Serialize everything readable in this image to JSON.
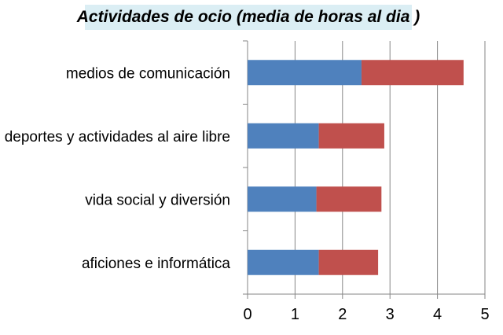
{
  "chart_data": {
    "type": "bar",
    "orientation": "horizontal",
    "stacked": true,
    "title": "Actividades de ocio (media de horas al dia )",
    "categories": [
      "medios de comunicación",
      "deportes y actividades al aire libre",
      "vida social y diversión",
      "aficiones e informática"
    ],
    "series": [
      {
        "values": [
          2.4,
          1.5,
          1.45,
          1.5
        ],
        "color": "#4f81bd"
      },
      {
        "values": [
          2.15,
          1.38,
          1.37,
          1.25
        ],
        "color": "#c0504d"
      }
    ],
    "xlim": [
      0,
      5
    ],
    "xticks": [
      "0",
      "1",
      "2",
      "3",
      "4",
      "5"
    ],
    "grid": true,
    "legend": "none"
  }
}
